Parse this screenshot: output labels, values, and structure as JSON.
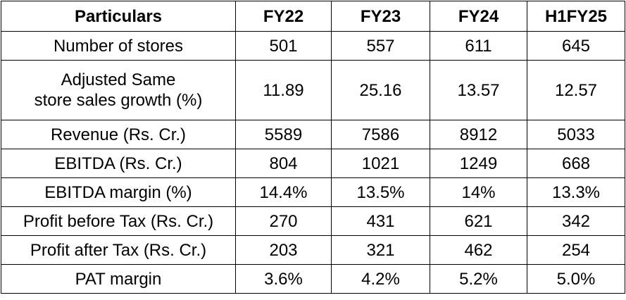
{
  "table": {
    "headers": [
      "Particulars",
      "FY22",
      "FY23",
      "FY24",
      "H1FY25"
    ],
    "rows": [
      {
        "label_lines": [
          "Number of stores"
        ],
        "values": [
          "501",
          "557",
          "611",
          "645"
        ]
      },
      {
        "label_lines": [
          "Adjusted Same",
          "store sales growth (%)"
        ],
        "values": [
          "11.89",
          "25.16",
          "13.57",
          "12.57"
        ]
      },
      {
        "label_lines": [
          "Revenue (Rs. Cr.)"
        ],
        "values": [
          "5589",
          "7586",
          "8912",
          "5033"
        ]
      },
      {
        "label_lines": [
          "EBITDA (Rs. Cr.)"
        ],
        "values": [
          "804",
          "1021",
          "1249",
          "668"
        ]
      },
      {
        "label_lines": [
          "EBITDA margin (%)"
        ],
        "values": [
          "14.4%",
          "13.5%",
          "14%",
          "13.3%"
        ]
      },
      {
        "label_lines": [
          "Profit before Tax (Rs. Cr.)"
        ],
        "values": [
          "270",
          "431",
          "621",
          "342"
        ]
      },
      {
        "label_lines": [
          "Profit after Tax (Rs. Cr.)"
        ],
        "values": [
          "203",
          "321",
          "462",
          "254"
        ]
      },
      {
        "label_lines": [
          "PAT margin"
        ],
        "values": [
          "3.6%",
          "4.2%",
          "5.2%",
          "5.0%"
        ]
      }
    ]
  }
}
